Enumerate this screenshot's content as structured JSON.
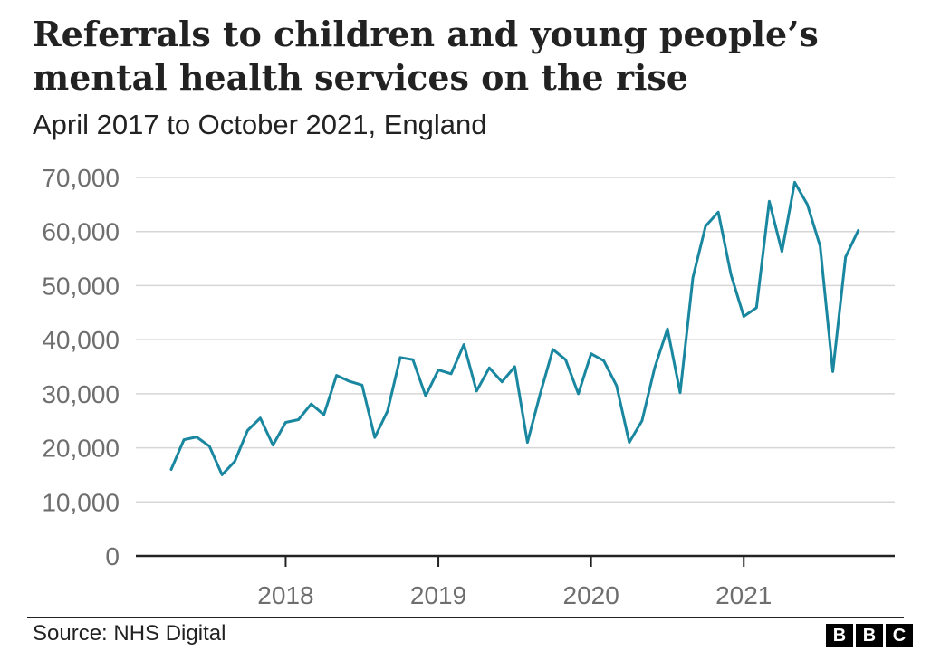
{
  "title": "Referrals to children and young people’s mental health services on the rise",
  "subtitle": "April 2017 to October 2021, England",
  "source": "Source: NHS Digital",
  "logo": {
    "letters": [
      "B",
      "B",
      "C"
    ]
  },
  "colors": {
    "line": "#1a87a0",
    "grid": "#d6d6d6",
    "axis": "#222222",
    "tick_label": "#6e6e6e",
    "text": "#222222"
  },
  "chart_data": {
    "type": "line",
    "title": "Referrals to children and young people’s mental health services on the rise",
    "subtitle": "April 2017 to October 2021, England",
    "xlabel": "",
    "ylabel": "",
    "x_start": "2017-04",
    "x_end": "2021-10",
    "ylim": [
      0,
      70000
    ],
    "y_ticks": [
      0,
      10000,
      20000,
      30000,
      40000,
      50000,
      60000,
      70000
    ],
    "y_tick_labels": [
      "0",
      "10,000",
      "20,000",
      "30,000",
      "40,000",
      "50,000",
      "60,000",
      "70,000"
    ],
    "x_ticks": [
      "2018",
      "2019",
      "2020",
      "2021"
    ],
    "grid": true,
    "series": [
      {
        "x": [
          "2017-04",
          "2017-05",
          "2017-06",
          "2017-07",
          "2017-08",
          "2017-09",
          "2017-10",
          "2017-11",
          "2017-12",
          "2018-01",
          "2018-02",
          "2018-03",
          "2018-04",
          "2018-05",
          "2018-06",
          "2018-07",
          "2018-08",
          "2018-09",
          "2018-10",
          "2018-11",
          "2018-12",
          "2019-01",
          "2019-02",
          "2019-03",
          "2019-04",
          "2019-05",
          "2019-06",
          "2019-07",
          "2019-08",
          "2019-09",
          "2019-10",
          "2019-11",
          "2019-12",
          "2020-01",
          "2020-02",
          "2020-03",
          "2020-04",
          "2020-05",
          "2020-06",
          "2020-07",
          "2020-08",
          "2020-09",
          "2020-10",
          "2020-11",
          "2020-12",
          "2021-01",
          "2021-02",
          "2021-03",
          "2021-04",
          "2021-05",
          "2021-06",
          "2021-07",
          "2021-08",
          "2021-09",
          "2021-10"
        ],
        "values": [
          16000,
          21500,
          22000,
          20300,
          15000,
          17500,
          23200,
          25500,
          20500,
          24700,
          25200,
          28100,
          26100,
          33400,
          32300,
          31600,
          21900,
          26800,
          36700,
          36300,
          29600,
          34400,
          33700,
          39100,
          30500,
          34800,
          32200,
          35000,
          21000,
          30000,
          38200,
          36300,
          30000,
          37400,
          36100,
          31500,
          21000,
          25000,
          34800,
          42000,
          30200,
          51500,
          61000,
          63600,
          52000,
          44300,
          45900,
          65600,
          56300,
          69100,
          65000,
          57300,
          34100,
          55300,
          60200
        ]
      }
    ]
  }
}
